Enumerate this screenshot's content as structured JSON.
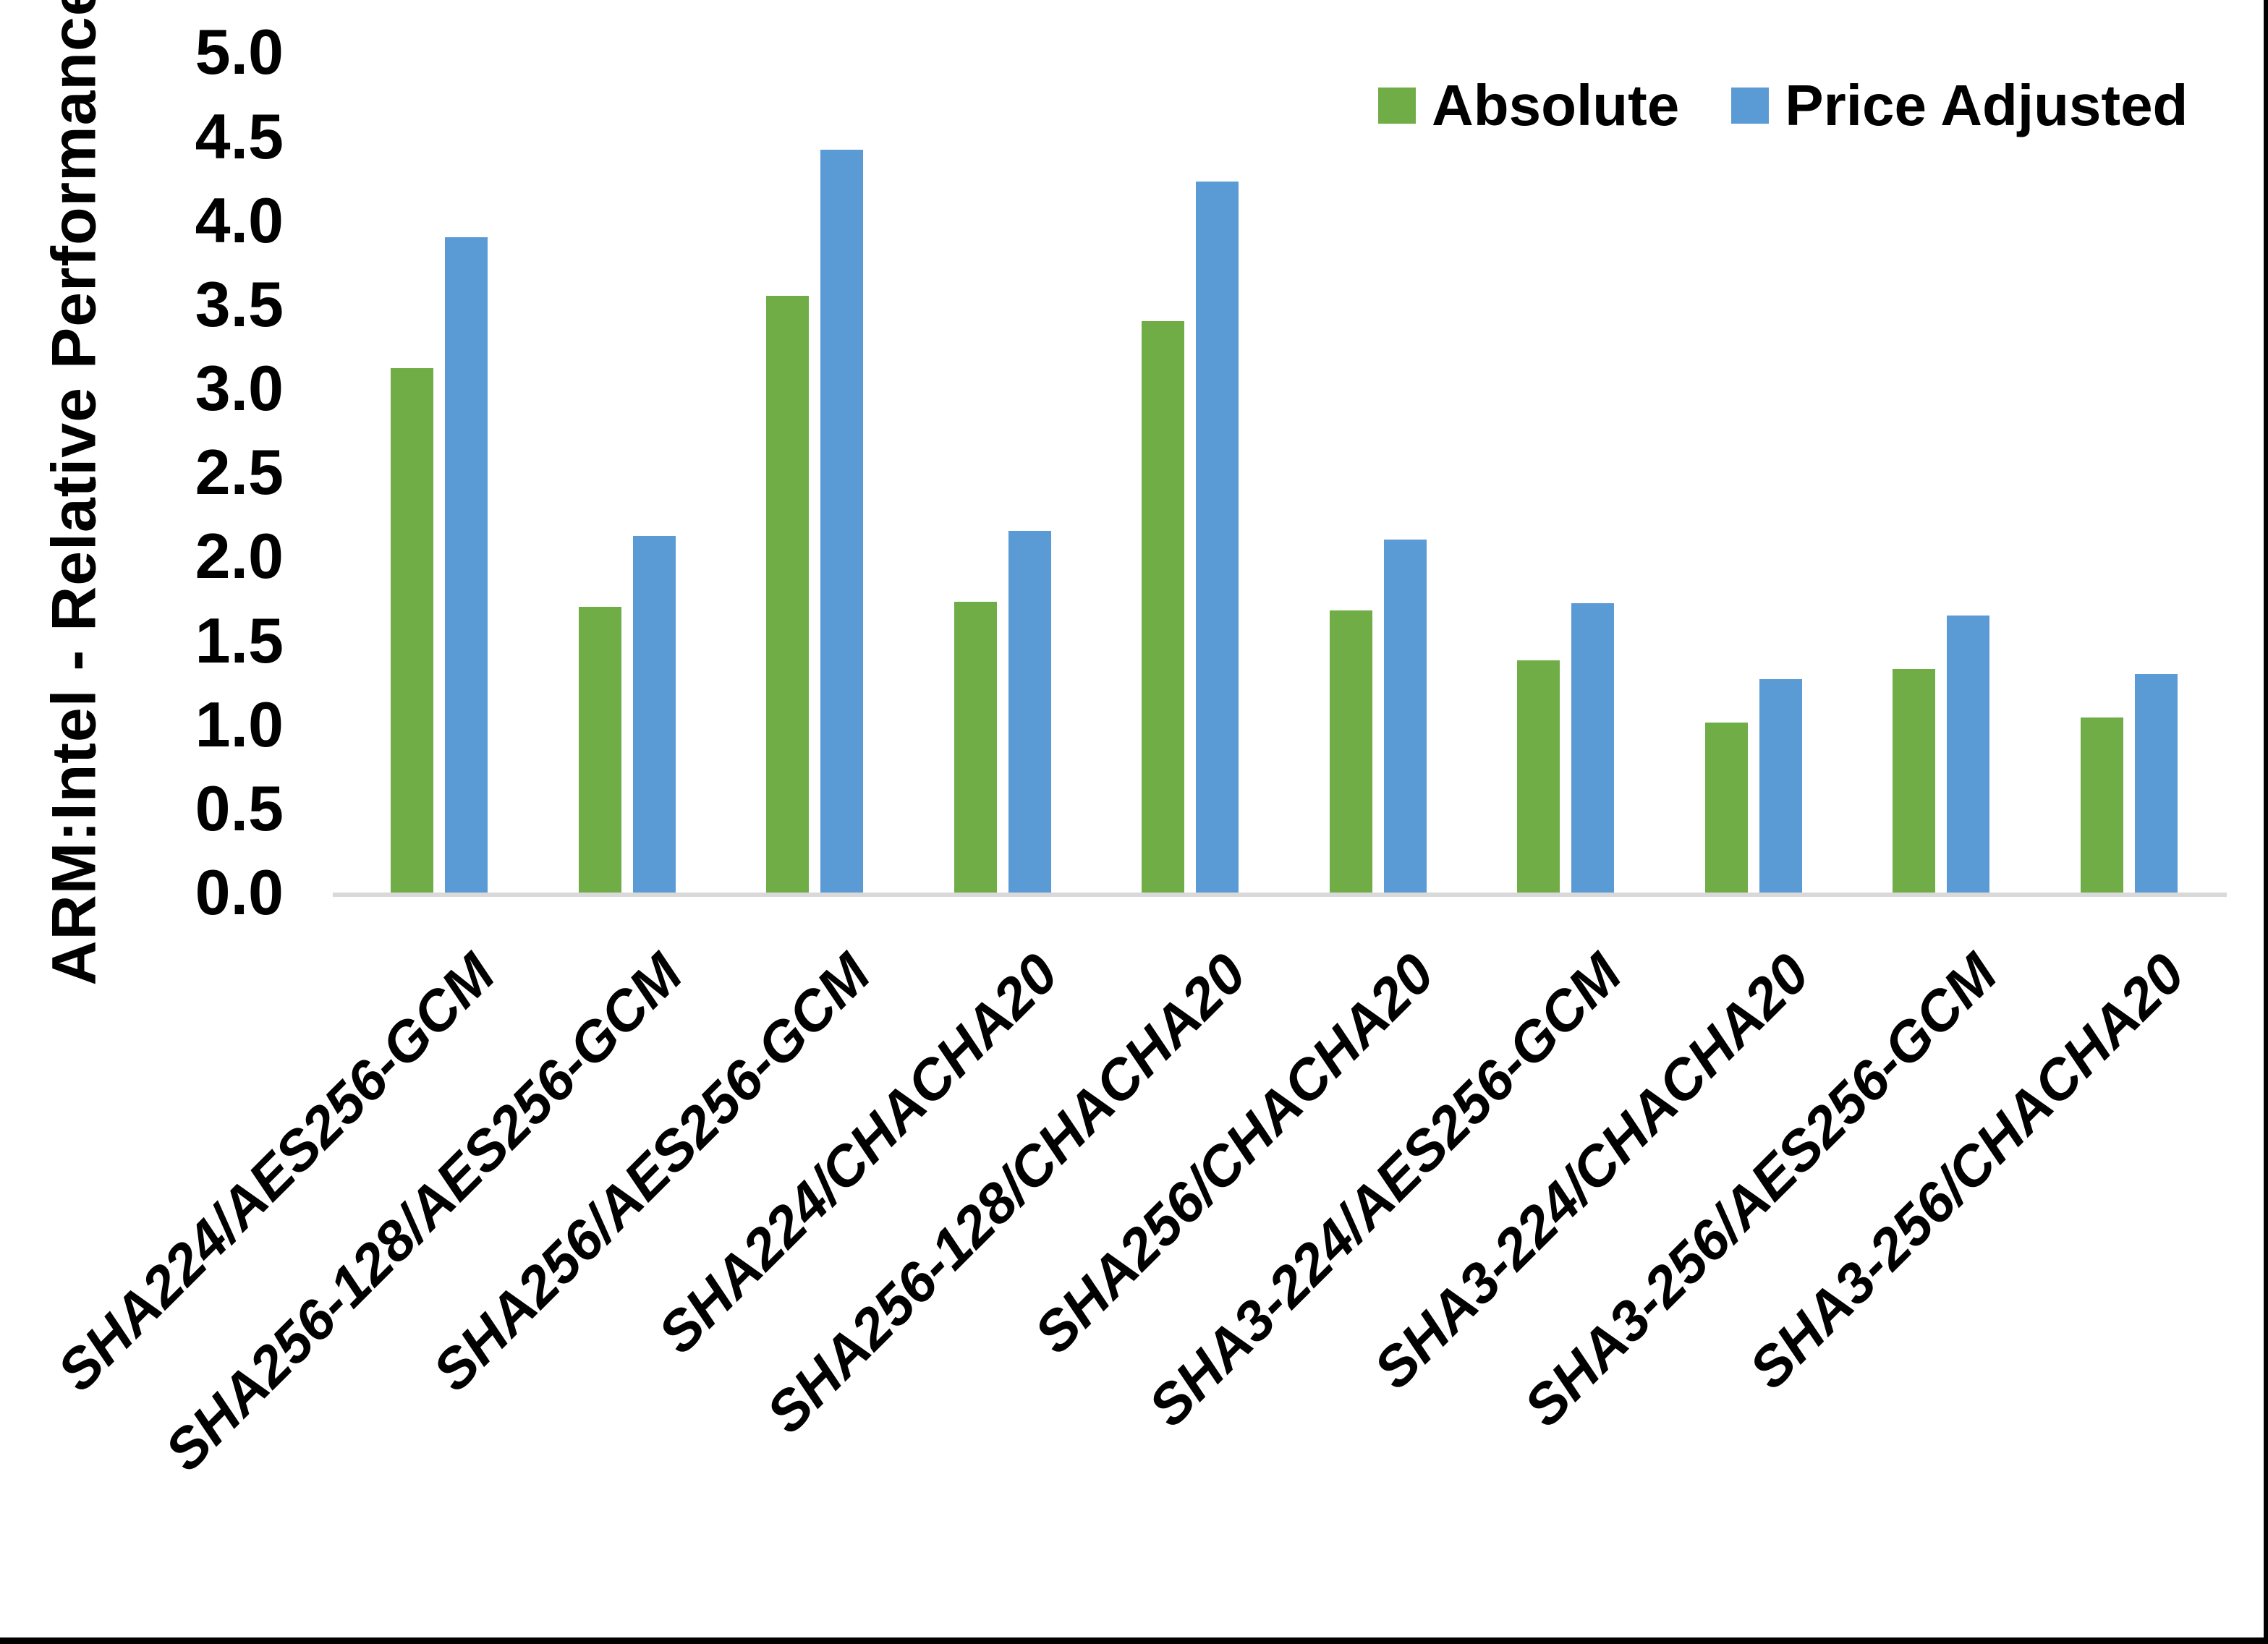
{
  "chart_data": {
    "type": "bar",
    "title": "",
    "xlabel": "",
    "ylabel": "ARM:Intel - Relative Performance",
    "ylim": [
      0.0,
      5.0
    ],
    "ytick_step": 0.5,
    "yticks": [
      "5.0",
      "4.5",
      "4.0",
      "3.5",
      "3.0",
      "2.5",
      "2.0",
      "1.5",
      "1.0",
      "0.5",
      "0.0"
    ],
    "grid": false,
    "legend_position": "top-right",
    "categories": [
      "SHA224/AES256-GCM",
      "SHA256-128/AES256-GCM",
      "SHA256/AES256-GCM",
      "SHA224/CHACHA20",
      "SHA256-128/CHACHA20",
      "SHA256/CHACHA20",
      "SHA3-224/AES256-GCM",
      "SHA3-224/CHACHA20",
      "SHA3-256/AES256-GCM",
      "SHA3-256/CHACHA20"
    ],
    "series": [
      {
        "name": "Absolute",
        "color": "#70AD47",
        "values": [
          3.12,
          1.7,
          3.55,
          1.73,
          3.4,
          1.68,
          1.38,
          1.01,
          1.33,
          1.04
        ]
      },
      {
        "name": "Price Adjusted",
        "color": "#5B9BD5",
        "values": [
          3.9,
          2.12,
          4.42,
          2.15,
          4.23,
          2.1,
          1.72,
          1.27,
          1.65,
          1.3
        ]
      }
    ]
  },
  "colors": {
    "axis_line": "#D9D9D9",
    "text": "#000000",
    "background": "#FFFFFF",
    "frame_border": "#000000"
  }
}
